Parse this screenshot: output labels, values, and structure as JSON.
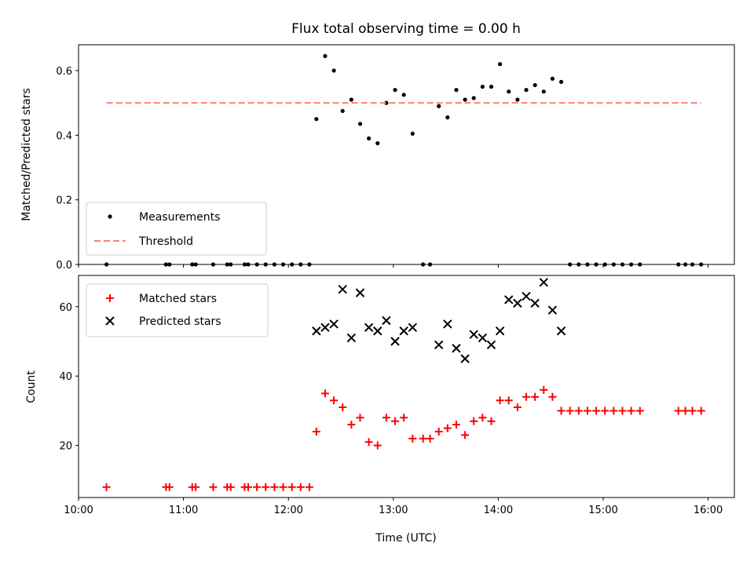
{
  "title": "Flux total observing time = 0.00 h",
  "xlabel": "Time (UTC)",
  "xticks": [
    "10:00",
    "11:00",
    "12:00",
    "13:00",
    "14:00",
    "15:00",
    "16:00"
  ],
  "chart_data": [
    {
      "type": "scatter",
      "ylabel": "Matched/Predicted stars",
      "x_range": [
        "10:00",
        "16:15"
      ],
      "ylim": [
        0,
        0.68
      ],
      "yticks": [
        "0.0",
        "0.2",
        "0.4",
        "0.6"
      ],
      "legend_position": "lower-left",
      "series": [
        {
          "name": "Measurements",
          "color": "#000000",
          "marker": "dot",
          "points": [
            [
              "10:16",
              0.0
            ],
            [
              "10:50",
              0.0
            ],
            [
              "10:52",
              0.0
            ],
            [
              "11:05",
              0.0
            ],
            [
              "11:07",
              0.0
            ],
            [
              "11:17",
              0.0
            ],
            [
              "11:25",
              0.0
            ],
            [
              "11:27",
              0.0
            ],
            [
              "11:35",
              0.0
            ],
            [
              "11:37",
              0.0
            ],
            [
              "11:42",
              0.0
            ],
            [
              "11:47",
              0.0
            ],
            [
              "11:52",
              0.0
            ],
            [
              "11:57",
              0.0
            ],
            [
              "12:02",
              0.0
            ],
            [
              "12:07",
              0.0
            ],
            [
              "12:12",
              0.0
            ],
            [
              "12:16",
              0.45
            ],
            [
              "12:21",
              0.645
            ],
            [
              "12:26",
              0.6
            ],
            [
              "12:31",
              0.475
            ],
            [
              "12:36",
              0.51
            ],
            [
              "12:41",
              0.435
            ],
            [
              "12:46",
              0.39
            ],
            [
              "12:51",
              0.375
            ],
            [
              "12:56",
              0.5
            ],
            [
              "13:01",
              0.54
            ],
            [
              "13:06",
              0.525
            ],
            [
              "13:11",
              0.405
            ],
            [
              "13:17",
              0.0
            ],
            [
              "13:21",
              0.0
            ],
            [
              "13:26",
              0.49
            ],
            [
              "13:31",
              0.455
            ],
            [
              "13:36",
              0.54
            ],
            [
              "13:41",
              0.51
            ],
            [
              "13:46",
              0.515
            ],
            [
              "13:51",
              0.55
            ],
            [
              "13:56",
              0.55
            ],
            [
              "14:01",
              0.62
            ],
            [
              "14:06",
              0.535
            ],
            [
              "14:11",
              0.51
            ],
            [
              "14:16",
              0.54
            ],
            [
              "14:21",
              0.555
            ],
            [
              "14:26",
              0.535
            ],
            [
              "14:31",
              0.575
            ],
            [
              "14:36",
              0.565
            ],
            [
              "14:41",
              0.0
            ],
            [
              "14:46",
              0.0
            ],
            [
              "14:51",
              0.0
            ],
            [
              "14:56",
              0.0
            ],
            [
              "15:01",
              0.0
            ],
            [
              "15:06",
              0.0
            ],
            [
              "15:11",
              0.0
            ],
            [
              "15:16",
              0.0
            ],
            [
              "15:21",
              0.0
            ],
            [
              "15:43",
              0.0
            ],
            [
              "15:47",
              0.0
            ],
            [
              "15:51",
              0.0
            ],
            [
              "15:56",
              0.0
            ]
          ]
        },
        {
          "name": "Threshold",
          "color": "#ff7f7f",
          "style": "dashed-line",
          "points": [
            [
              "10:16",
              0.5
            ],
            [
              "15:56",
              0.5
            ]
          ]
        }
      ]
    },
    {
      "type": "scatter",
      "ylabel": "Count",
      "x_range": [
        "10:00",
        "16:15"
      ],
      "ylim": [
        5,
        69
      ],
      "yticks": [
        "20",
        "40",
        "60"
      ],
      "legend_position": "upper-left",
      "series": [
        {
          "name": "Matched stars",
          "color": "#ff0000",
          "marker": "plus",
          "points": [
            [
              "10:16",
              8
            ],
            [
              "10:50",
              8
            ],
            [
              "10:52",
              8
            ],
            [
              "11:05",
              8
            ],
            [
              "11:07",
              8
            ],
            [
              "11:17",
              8
            ],
            [
              "11:25",
              8
            ],
            [
              "11:27",
              8
            ],
            [
              "11:35",
              8
            ],
            [
              "11:37",
              8
            ],
            [
              "11:42",
              8
            ],
            [
              "11:47",
              8
            ],
            [
              "11:52",
              8
            ],
            [
              "11:57",
              8
            ],
            [
              "12:02",
              8
            ],
            [
              "12:07",
              8
            ],
            [
              "12:12",
              8
            ],
            [
              "12:16",
              24
            ],
            [
              "12:21",
              35
            ],
            [
              "12:26",
              33
            ],
            [
              "12:31",
              31
            ],
            [
              "12:36",
              26
            ],
            [
              "12:41",
              28
            ],
            [
              "12:46",
              21
            ],
            [
              "12:51",
              20
            ],
            [
              "12:56",
              28
            ],
            [
              "13:01",
              27
            ],
            [
              "13:06",
              28
            ],
            [
              "13:11",
              22
            ],
            [
              "13:17",
              22
            ],
            [
              "13:21",
              22
            ],
            [
              "13:26",
              24
            ],
            [
              "13:31",
              25
            ],
            [
              "13:36",
              26
            ],
            [
              "13:41",
              23
            ],
            [
              "13:46",
              27
            ],
            [
              "13:51",
              28
            ],
            [
              "13:56",
              27
            ],
            [
              "14:01",
              33
            ],
            [
              "14:06",
              33
            ],
            [
              "14:11",
              31
            ],
            [
              "14:16",
              34
            ],
            [
              "14:21",
              34
            ],
            [
              "14:26",
              36
            ],
            [
              "14:31",
              34
            ],
            [
              "14:36",
              30
            ],
            [
              "14:41",
              30
            ],
            [
              "14:46",
              30
            ],
            [
              "14:51",
              30
            ],
            [
              "14:56",
              30
            ],
            [
              "15:01",
              30
            ],
            [
              "15:06",
              30
            ],
            [
              "15:11",
              30
            ],
            [
              "15:16",
              30
            ],
            [
              "15:21",
              30
            ],
            [
              "15:43",
              30
            ],
            [
              "15:47",
              30
            ],
            [
              "15:51",
              30
            ],
            [
              "15:56",
              30
            ]
          ]
        },
        {
          "name": "Predicted stars",
          "color": "#000000",
          "marker": "x",
          "points": [
            [
              "12:16",
              53
            ],
            [
              "12:21",
              54
            ],
            [
              "12:26",
              55
            ],
            [
              "12:31",
              65
            ],
            [
              "12:36",
              51
            ],
            [
              "12:41",
              64
            ],
            [
              "12:46",
              54
            ],
            [
              "12:51",
              53
            ],
            [
              "12:56",
              56
            ],
            [
              "13:01",
              50
            ],
            [
              "13:06",
              53
            ],
            [
              "13:11",
              54
            ],
            [
              "13:26",
              49
            ],
            [
              "13:31",
              55
            ],
            [
              "13:36",
              48
            ],
            [
              "13:41",
              45
            ],
            [
              "13:46",
              52
            ],
            [
              "13:51",
              51
            ],
            [
              "13:56",
              49
            ],
            [
              "14:01",
              53
            ],
            [
              "14:06",
              62
            ],
            [
              "14:11",
              61
            ],
            [
              "14:16",
              63
            ],
            [
              "14:21",
              61
            ],
            [
              "14:26",
              67
            ],
            [
              "14:31",
              59
            ],
            [
              "14:36",
              53
            ]
          ]
        }
      ]
    }
  ]
}
